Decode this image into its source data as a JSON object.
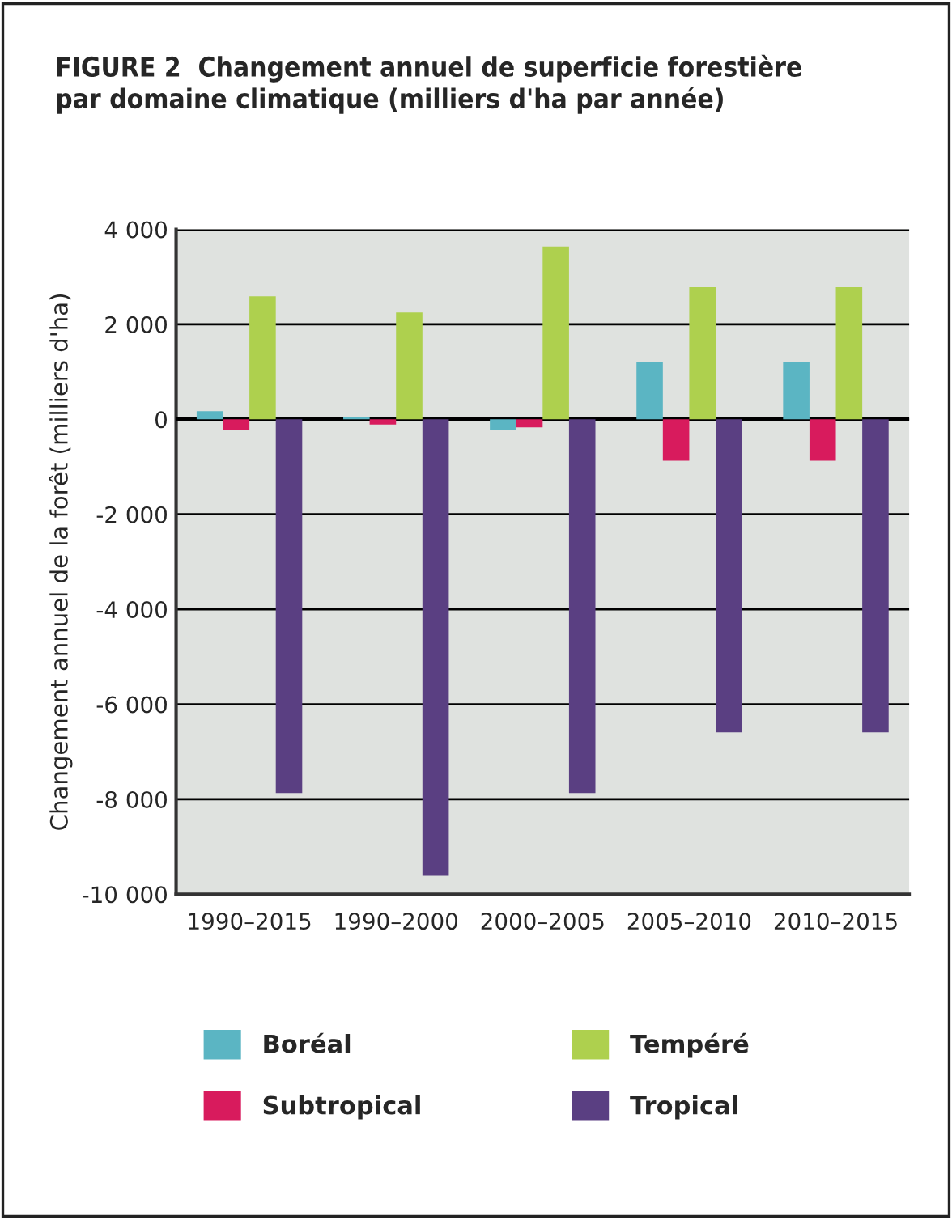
{
  "chart_data": {
    "type": "bar",
    "title": "FIGURE 2  Changement annuel de superficie forestière\npar domaine climatique (milliers d'ha par année)",
    "ylabel": "Changement annuel de la forêt (milliers d'ha)",
    "categories": [
      "1990–2015",
      "1990–2000",
      "2000–2005",
      "2005–2010",
      "2010–2015"
    ],
    "series": [
      {
        "name": "Boréal",
        "color": "#5bb5c3",
        "values": [
          170,
          40,
          -220,
          1210,
          1210
        ]
      },
      {
        "name": "Subtropical",
        "color": "#d81b5d",
        "values": [
          -220,
          -110,
          -170,
          -870,
          -870
        ]
      },
      {
        "name": "Tempéré",
        "color": "#aed04e",
        "values": [
          2590,
          2250,
          3640,
          2780,
          2780
        ]
      },
      {
        "name": "Tropical",
        "color": "#5a3f82",
        "values": [
          -7870,
          -9610,
          -7870,
          -6590,
          -6590
        ]
      }
    ],
    "ylim": [
      -10000,
      4000
    ],
    "yticks": [
      {
        "value": -10000,
        "label": "-10 000"
      },
      {
        "value": -8000,
        "label": "-8 000"
      },
      {
        "value": -6000,
        "label": "-6 000"
      },
      {
        "value": -4000,
        "label": "-4 000"
      },
      {
        "value": -2000,
        "label": "-2 000"
      },
      0,
      {
        "value": 2000,
        "label": "2 000"
      },
      {
        "value": 4000,
        "label": "4 000"
      }
    ],
    "grid": "y",
    "legend": "bottom"
  }
}
